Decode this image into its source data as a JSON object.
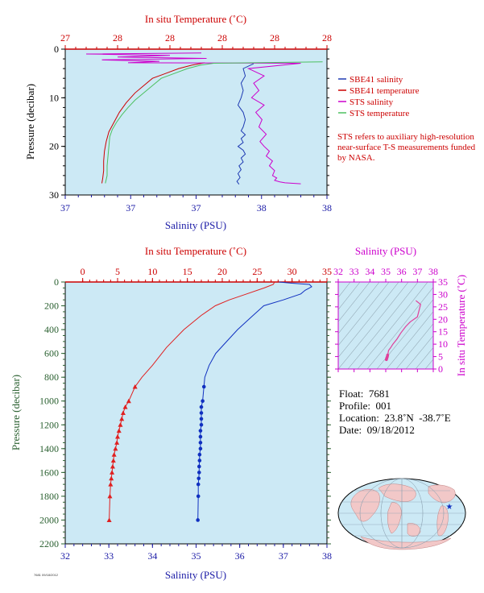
{
  "chart_data": [
    {
      "id": "near_surface",
      "type": "line",
      "top_axis_label": "In situ Temperature (˚C)",
      "top_ticks": [
        "27",
        "28",
        "28",
        "28",
        "28",
        "28"
      ],
      "bottom_axis_label": "Salinity (PSU)",
      "bottom_ticks": [
        "37",
        "37",
        "37",
        "38",
        "38"
      ],
      "ylabel": "Pressure (decibar)",
      "ylim": [
        0,
        30
      ],
      "yticks": [
        "0",
        "10",
        "20",
        "30"
      ],
      "y_reversed": true,
      "legend_position": "right",
      "series": [
        {
          "name": "SBE41 salinity",
          "color": "#1f3bb3",
          "axis": "salinity",
          "x": [
            38.3,
            38.2,
            38.22,
            38.18,
            38.2,
            38.18,
            38.15,
            38.2,
            38.22,
            38.2,
            38.18,
            38.22,
            38.18,
            38.2,
            38.15,
            38.2,
            38.22,
            38.18,
            38.2,
            38.16,
            38.18,
            38.15,
            38.17,
            38.14,
            38.16
          ],
          "y": [
            3.0,
            4.0,
            5.5,
            7.0,
            8.5,
            10.0,
            11.5,
            13.0,
            14.5,
            16.0,
            16.8,
            17.6,
            18.4,
            19.2,
            20.0,
            20.8,
            21.6,
            22.4,
            23.2,
            24.0,
            24.8,
            25.6,
            26.4,
            27.2,
            27.8
          ]
        },
        {
          "name": "SBE41 temperature",
          "color": "#cc0000",
          "axis": "temperature",
          "x": [
            28.6,
            28.45,
            28.3,
            28.15,
            28.0,
            27.9,
            27.8,
            27.7,
            27.62,
            27.56,
            27.5,
            27.47,
            27.45,
            27.44,
            27.44,
            27.43,
            27.42
          ],
          "y": [
            2.8,
            3.3,
            4.0,
            5.0,
            6.0,
            7.5,
            9.0,
            11.0,
            13.0,
            15.0,
            17.0,
            19.0,
            21.0,
            23.0,
            25.0,
            26.5,
            27.6
          ]
        },
        {
          "name": "STS salinity",
          "color": "#cc00cc",
          "axis": "salinity",
          "x": [
            37.8,
            36.7,
            37.5,
            37.0,
            37.85,
            36.85,
            37.4,
            37.1,
            38.75,
            38.25,
            38.4,
            38.3,
            38.35,
            38.28,
            38.4,
            38.32,
            38.38,
            38.35,
            38.42,
            38.36,
            38.4,
            38.45,
            38.42,
            38.48,
            38.45,
            38.5,
            38.48,
            38.52,
            38.5,
            38.55,
            38.6,
            38.75
          ],
          "y": [
            0.8,
            1.0,
            1.3,
            1.6,
            1.9,
            2.2,
            2.5,
            2.8,
            2.9,
            4.0,
            5.5,
            7.0,
            8.5,
            10.0,
            11.5,
            13.0,
            14.5,
            16.0,
            17.5,
            19.0,
            20.0,
            21.0,
            22.0,
            23.0,
            24.0,
            25.0,
            26.0,
            26.5,
            27.0,
            27.3,
            27.5,
            27.7
          ]
        },
        {
          "name": "STS temperature",
          "color": "#4cc060",
          "axis": "temperature",
          "x": [
            29.95,
            28.7,
            28.55,
            28.4,
            28.25,
            28.1,
            28.0,
            27.9,
            27.8,
            27.72,
            27.65,
            27.59,
            27.54,
            27.51,
            27.5,
            27.49,
            27.48,
            27.48,
            27.46
          ],
          "y": [
            2.6,
            2.9,
            3.3,
            4.0,
            5.0,
            6.0,
            7.5,
            9.0,
            10.5,
            12.0,
            13.5,
            15.0,
            16.5,
            18.0,
            20.0,
            22.0,
            24.0,
            26.0,
            27.6
          ]
        }
      ]
    },
    {
      "id": "full_profile",
      "type": "line",
      "top_axis_label": "In situ Temperature (˚C)",
      "top_ticks": [
        "0",
        "5",
        "10",
        "15",
        "20",
        "25",
        "30",
        "35"
      ],
      "bottom_axis_label": "Salinity (PSU)",
      "bottom_ticks": [
        "32",
        "33",
        "34",
        "35",
        "36",
        "37",
        "38"
      ],
      "xlim_temperature": [
        0,
        35
      ],
      "xlim_salinity": [
        32,
        38
      ],
      "ylabel": "Pressure (decibar)",
      "ylim": [
        0,
        2200
      ],
      "yticks": [
        "0",
        "200",
        "400",
        "600",
        "800",
        "1000",
        "1200",
        "1400",
        "1600",
        "1800",
        "2000",
        "2200"
      ],
      "y_reversed": true,
      "series": [
        {
          "name": "temperature",
          "color": "#e02020",
          "axis": "temperature",
          "line_x": [
            27.5,
            27.3,
            26.0,
            23.5,
            21.0,
            19.0,
            17.0,
            14.5,
            12.0,
            10.0,
            8.5,
            7.5
          ],
          "line_y": [
            0,
            20,
            50,
            100,
            150,
            200,
            280,
            400,
            550,
            700,
            800,
            880
          ],
          "marker": "triangle",
          "x": [
            7.5,
            6.6,
            6.1,
            5.8,
            5.6,
            5.4,
            5.2,
            5.0,
            4.9,
            4.7,
            4.5,
            4.4,
            4.3,
            4.2,
            4.1,
            4.0,
            3.9,
            3.8
          ],
          "y": [
            880,
            1000,
            1050,
            1100,
            1150,
            1200,
            1250,
            1300,
            1350,
            1400,
            1450,
            1500,
            1550,
            1600,
            1650,
            1700,
            1800,
            2000
          ]
        },
        {
          "name": "salinity",
          "color": "#1030c0",
          "axis": "salinity",
          "line_x": [
            36.9,
            37.2,
            37.6,
            37.65,
            37.5,
            37.4,
            37.0,
            36.55,
            36.25,
            35.95,
            35.7,
            35.45,
            35.3,
            35.2
          ],
          "line_y": [
            0,
            10,
            20,
            40,
            70,
            100,
            150,
            200,
            300,
            400,
            500,
            600,
            700,
            800
          ],
          "marker": "circle",
          "x": [
            35.18,
            35.15,
            35.12,
            35.12,
            35.12,
            35.12,
            35.1,
            35.1,
            35.1,
            35.1,
            35.08,
            35.08,
            35.07,
            35.07,
            35.06,
            35.05,
            35.05,
            35.04
          ],
          "y": [
            880,
            1000,
            1050,
            1100,
            1150,
            1200,
            1250,
            1300,
            1350,
            1400,
            1450,
            1500,
            1550,
            1600,
            1650,
            1700,
            1800,
            2000
          ]
        }
      ]
    },
    {
      "id": "ts_inset",
      "type": "line",
      "top_axis_label": "Salinity (PSU)",
      "top_ticks": [
        "32",
        "33",
        "34",
        "35",
        "36",
        "37",
        "38"
      ],
      "xlim": [
        32,
        38
      ],
      "right_axis_label": "In situ Temperature (˚C)",
      "right_ticks": [
        "0",
        "5",
        "10",
        "15",
        "20",
        "25",
        "30",
        "35"
      ],
      "ylim": [
        0,
        35
      ],
      "series": [
        {
          "name": "T-S",
          "color": "#e0409a",
          "x": [
            35.04,
            35.05,
            35.06,
            35.08,
            35.1,
            35.12,
            35.18,
            35.3,
            35.45,
            35.7,
            35.95,
            36.25,
            36.55,
            37.0,
            37.2,
            36.9
          ],
          "y": [
            3.8,
            4.0,
            4.3,
            4.6,
            5.0,
            5.6,
            7.5,
            8.5,
            10.0,
            12.0,
            14.5,
            17.0,
            19.0,
            21.0,
            26.0,
            27.5
          ]
        }
      ]
    }
  ],
  "legend": [
    {
      "label": "SBE41 salinity",
      "color": "#1f3bb3"
    },
    {
      "label": "SBE41 temperature",
      "color": "#cc0000"
    },
    {
      "label": "STS salinity",
      "color": "#cc00cc"
    },
    {
      "label": "STS temperature",
      "color": "#4cc060"
    }
  ],
  "note": "STS refers to auxiliary high-resolution near-surface T-S measurements funded by NASA.",
  "float_info": {
    "float": "Float:  7681",
    "profile": "Profile:  001",
    "location": "Location:  23.8˚N  -38.7˚E",
    "date": "Date:  09/18/2012"
  },
  "colors": {
    "plot_bg": "#cce9f5",
    "temp_axis": "#cc0000",
    "sal_axis": "#1a1aa6",
    "pressure_axis": "#2a6030",
    "ts_axis": "#cc00cc"
  },
  "map": {
    "marker_lat": 23.8,
    "marker_lon": -38.7,
    "marker_symbol": "star-icon"
  },
  "footer_code": "7681  09/18/2012"
}
